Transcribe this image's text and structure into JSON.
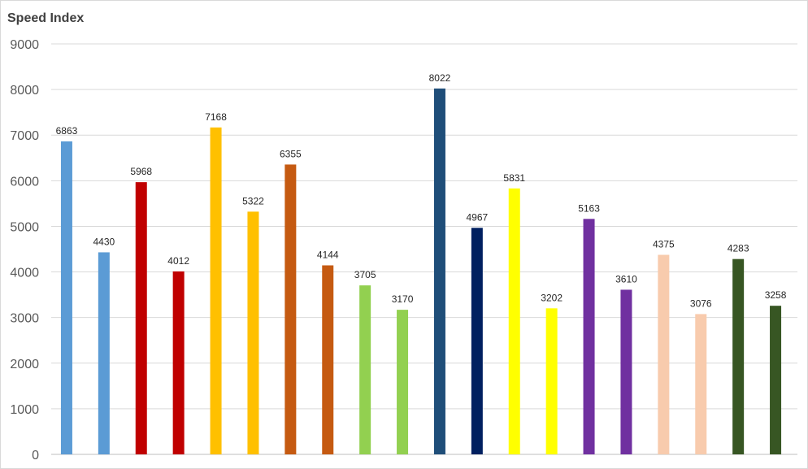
{
  "chart_data": {
    "type": "bar",
    "title": "Speed Index",
    "xlabel": "",
    "ylabel": "",
    "ylim": [
      0,
      9000
    ],
    "yticks": [
      0,
      1000,
      2000,
      3000,
      4000,
      5000,
      6000,
      7000,
      8000,
      9000
    ],
    "grid": true,
    "legend": "none",
    "values": [
      6863,
      4430,
      5968,
      4012,
      7168,
      5322,
      6355,
      4144,
      3705,
      3170,
      8022,
      4967,
      5831,
      3202,
      5163,
      3610,
      4375,
      3076,
      4283,
      3258
    ],
    "colors": [
      "#5b9bd5",
      "#5b9bd5",
      "#c00000",
      "#c00000",
      "#ffc000",
      "#ffc000",
      "#c55a11",
      "#c55a11",
      "#92d050",
      "#92d050",
      "#1f4e79",
      "#002060",
      "#ffff00",
      "#ffff00",
      "#7030a0",
      "#7030a0",
      "#f8cbad",
      "#f8cbad",
      "#375623",
      "#375623"
    ]
  }
}
